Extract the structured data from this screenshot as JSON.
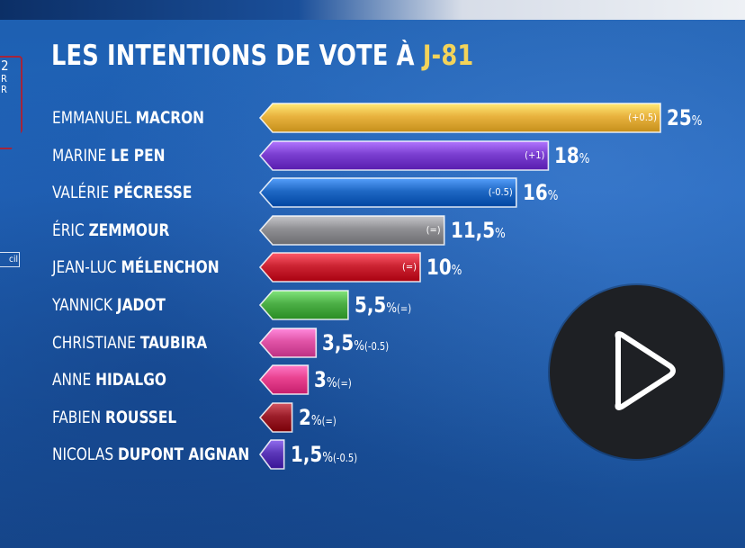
{
  "title": {
    "main": "LES INTENTIONS DE VOTE À ",
    "highlight": "J-81"
  },
  "left_badge": {
    "number": "2",
    "line1": "R",
    "line2": "R"
  },
  "left_tag": "cil",
  "chart_data": {
    "type": "bar",
    "orientation": "horizontal",
    "title": "LES INTENTIONS DE VOTE À J-81",
    "xlim": [
      0,
      25
    ],
    "unit": "%",
    "rows": [
      {
        "first": "EMMANUEL",
        "last": "MACRON",
        "value": 25,
        "display": "25",
        "change": "(+0.5)",
        "change_placement": "inside",
        "color": "#e8b23e"
      },
      {
        "first": "MARINE",
        "last": "LE PEN",
        "value": 18,
        "display": "18",
        "change": "(+1)",
        "change_placement": "inside",
        "color": "#7b3fd1"
      },
      {
        "first": "VALÉRIE",
        "last": "PÉCRESSE",
        "value": 16,
        "display": "16",
        "change": "(-0.5)",
        "change_placement": "inside",
        "color": "#1f68c4"
      },
      {
        "first": "ÉRIC",
        "last": "ZEMMOUR",
        "value": 11.5,
        "display": "11,5",
        "change": "(=)",
        "change_placement": "inside",
        "color": "#8f8f93"
      },
      {
        "first": "JEAN-LUC",
        "last": "MÉLENCHON",
        "value": 10,
        "display": "10",
        "change": "(=)",
        "change_placement": "inside",
        "color": "#cc2433"
      },
      {
        "first": "YANNICK",
        "last": "JADOT",
        "value": 5.5,
        "display": "5,5",
        "change": "(=)",
        "change_placement": "after",
        "color": "#4caf46"
      },
      {
        "first": "CHRISTIANE",
        "last": "TAUBIRA",
        "value": 3.5,
        "display": "3,5",
        "change": "(-0.5)",
        "change_placement": "after",
        "color": "#e053a6"
      },
      {
        "first": "ANNE",
        "last": "HIDALGO",
        "value": 3,
        "display": "3",
        "change": "(=)",
        "change_placement": "after",
        "color": "#e8418f"
      },
      {
        "first": "FABIEN",
        "last": "ROUSSEL",
        "value": 2,
        "display": "2",
        "change": "(=)",
        "change_placement": "after",
        "color": "#9c1e2a"
      },
      {
        "first": "NICOLAS",
        "last": "DUPONT AIGNAN",
        "value": 1.5,
        "display": "1,5",
        "change": "(-0.5)",
        "change_placement": "after",
        "color": "#5b37b8"
      }
    ]
  },
  "play_button": {
    "icon": "play-icon"
  }
}
